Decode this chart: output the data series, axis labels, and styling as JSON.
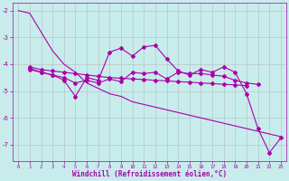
{
  "xlabel": "Windchill (Refroidissement éolien,°C)",
  "bg_color": "#c8ecec",
  "line_color": "#aa00aa",
  "grid_color": "#b0b0b0",
  "xlim": [
    -0.5,
    23.5
  ],
  "ylim": [
    -7.6,
    -1.7
  ],
  "yticks": [
    -7,
    -6,
    -5,
    -4,
    -3,
    -2
  ],
  "xticks": [
    0,
    1,
    2,
    3,
    4,
    5,
    6,
    7,
    8,
    9,
    10,
    11,
    12,
    13,
    14,
    15,
    16,
    17,
    18,
    19,
    20,
    21,
    22,
    23
  ],
  "line1_x": [
    0,
    1,
    2,
    3,
    4,
    5,
    6,
    7,
    8,
    9,
    10,
    11,
    12,
    13,
    14,
    15,
    16,
    17,
    18,
    19,
    20,
    21,
    22,
    23
  ],
  "line1_y": [
    -2.0,
    -2.1,
    -2.8,
    -3.5,
    -4.0,
    -4.3,
    -4.7,
    -4.9,
    -5.1,
    -5.2,
    -5.4,
    -5.5,
    -5.6,
    -5.7,
    -5.8,
    -5.9,
    -6.0,
    -6.1,
    -6.2,
    -6.3,
    -6.4,
    -6.5,
    -6.6,
    -6.7
  ],
  "line2_x": [
    1,
    2,
    3,
    4,
    5,
    6,
    7,
    8,
    9,
    10,
    11,
    12,
    13,
    14,
    15,
    16,
    17,
    18,
    19,
    20
  ],
  "line2_y": [
    -4.1,
    -4.2,
    -4.25,
    -4.3,
    -4.35,
    -4.4,
    -4.45,
    -4.5,
    -4.52,
    -4.55,
    -4.57,
    -4.6,
    -4.62,
    -4.65,
    -4.67,
    -4.7,
    -4.72,
    -4.75,
    -4.77,
    -4.8
  ],
  "line3_x": [
    1,
    2,
    3,
    4,
    5,
    6,
    7,
    8,
    9,
    10,
    11,
    12,
    13,
    14,
    15,
    16,
    17,
    18,
    19,
    20,
    21
  ],
  "line3_y": [
    -4.2,
    -4.3,
    -4.4,
    -4.5,
    -4.7,
    -4.6,
    -4.7,
    -4.55,
    -4.65,
    -4.3,
    -4.35,
    -4.3,
    -4.55,
    -4.3,
    -4.35,
    -4.35,
    -4.4,
    -4.45,
    -4.6,
    -4.7,
    -4.75
  ],
  "line4_x": [
    1,
    2,
    3,
    4,
    5,
    6,
    7,
    8,
    9,
    10,
    11,
    12,
    13,
    14,
    15,
    16,
    17,
    18,
    19,
    20,
    21,
    22,
    23
  ],
  "line4_y": [
    -4.15,
    -4.3,
    -4.4,
    -4.6,
    -5.2,
    -4.5,
    -4.6,
    -3.55,
    -3.4,
    -3.7,
    -3.35,
    -3.3,
    -3.8,
    -4.25,
    -4.4,
    -4.2,
    -4.3,
    -4.1,
    -4.3,
    -5.1,
    -6.4,
    -7.3,
    -6.75
  ]
}
